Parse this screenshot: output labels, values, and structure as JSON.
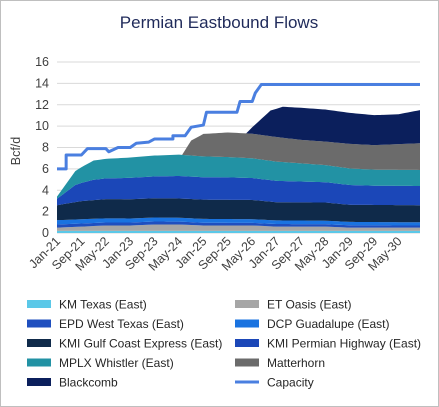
{
  "chart_data": {
    "type": "area",
    "title": "Permian Eastbound Flows",
    "ylabel": "Bcf/d",
    "xlabel": "",
    "ylim": [
      0,
      16
    ],
    "yticks": [
      0,
      2,
      4,
      6,
      8,
      10,
      12,
      14,
      16
    ],
    "grid": true,
    "legend_position": "bottom",
    "x_tick_labels": [
      "Jan-21",
      "Sep-21",
      "May-22",
      "Jan-23",
      "Sep-23",
      "May-24",
      "Jan-25",
      "Sep-25",
      "May-26",
      "Jan-27",
      "Sep-27",
      "May-28",
      "Jan-29",
      "Sep-29",
      "May-30"
    ],
    "x_tick_positions": [
      0,
      8,
      16,
      24,
      32,
      40,
      48,
      56,
      64,
      72,
      80,
      88,
      96,
      104,
      112
    ],
    "x_count": 120,
    "series": [
      {
        "name": "KM Texas (East)",
        "color": "#5bc8e8",
        "points": [
          [
            0,
            0.2
          ],
          [
            119,
            0.2
          ]
        ]
      },
      {
        "name": "ET Oasis (East)",
        "color": "#a6a6a6",
        "points": [
          [
            0,
            0.3
          ],
          [
            8,
            0.4
          ],
          [
            16,
            0.5
          ],
          [
            24,
            0.5
          ],
          [
            32,
            0.6
          ],
          [
            40,
            0.6
          ],
          [
            48,
            0.5
          ],
          [
            56,
            0.5
          ],
          [
            64,
            0.5
          ],
          [
            72,
            0.4
          ],
          [
            80,
            0.4
          ],
          [
            88,
            0.4
          ],
          [
            96,
            0.3
          ],
          [
            104,
            0.3
          ],
          [
            112,
            0.3
          ],
          [
            119,
            0.3
          ]
        ]
      },
      {
        "name": "EPD West Texas (East)",
        "color": "#1f4fbf",
        "points": [
          [
            0,
            0.3
          ],
          [
            119,
            0.2
          ]
        ]
      },
      {
        "name": "DCP Guadalupe (East)",
        "color": "#1a73e0",
        "points": [
          [
            0,
            0.4
          ],
          [
            119,
            0.3
          ]
        ]
      },
      {
        "name": "KMI Gulf Coast Express (East)",
        "color": "#0f2a4a",
        "points": [
          [
            0,
            1.4
          ],
          [
            8,
            1.7
          ],
          [
            16,
            1.8
          ],
          [
            24,
            1.8
          ],
          [
            32,
            1.8
          ],
          [
            40,
            1.8
          ],
          [
            48,
            1.8
          ],
          [
            56,
            1.8
          ],
          [
            64,
            1.8
          ],
          [
            72,
            1.7
          ],
          [
            80,
            1.7
          ],
          [
            88,
            1.7
          ],
          [
            96,
            1.6
          ],
          [
            104,
            1.6
          ],
          [
            112,
            1.6
          ],
          [
            119,
            1.6
          ]
        ]
      },
      {
        "name": "KMI Permian Highway (East)",
        "color": "#1b47b8",
        "points": [
          [
            0,
            0.6
          ],
          [
            6,
            1.6
          ],
          [
            12,
            1.9
          ],
          [
            24,
            2.0
          ],
          [
            40,
            2.1
          ],
          [
            56,
            2.1
          ],
          [
            72,
            2.0
          ],
          [
            88,
            1.9
          ],
          [
            104,
            1.8
          ],
          [
            119,
            1.8
          ]
        ]
      },
      {
        "name": "MPLX Whistler (East)",
        "color": "#2292a4",
        "points": [
          [
            0,
            0.2
          ],
          [
            6,
            1.3
          ],
          [
            12,
            1.8
          ],
          [
            24,
            1.9
          ],
          [
            40,
            2.0
          ],
          [
            56,
            1.9
          ],
          [
            72,
            1.8
          ],
          [
            88,
            1.6
          ],
          [
            104,
            1.5
          ],
          [
            119,
            1.5
          ]
        ]
      },
      {
        "name": "Matterhorn",
        "color": "#6b6b6b",
        "points": [
          [
            0,
            0
          ],
          [
            41,
            0
          ],
          [
            44,
            1.4
          ],
          [
            48,
            2.1
          ],
          [
            56,
            2.3
          ],
          [
            64,
            2.3
          ],
          [
            72,
            2.3
          ],
          [
            80,
            2.2
          ],
          [
            88,
            2.2
          ],
          [
            96,
            2.3
          ],
          [
            104,
            2.3
          ],
          [
            112,
            2.4
          ],
          [
            119,
            2.5
          ]
        ]
      },
      {
        "name": "Blackcomb",
        "color": "#0b1f5c",
        "points": [
          [
            0,
            0
          ],
          [
            62,
            0
          ],
          [
            66,
            1.2
          ],
          [
            70,
            2.4
          ],
          [
            74,
            2.9
          ],
          [
            80,
            3.0
          ],
          [
            88,
            3.0
          ],
          [
            96,
            2.9
          ],
          [
            104,
            2.8
          ],
          [
            112,
            2.8
          ],
          [
            119,
            3.1
          ]
        ]
      }
    ],
    "capacity": {
      "name": "Capacity",
      "color": "#4a7fe0",
      "points": [
        [
          0,
          6.0
        ],
        [
          3,
          6.0
        ],
        [
          3,
          7.3
        ],
        [
          8,
          7.3
        ],
        [
          10,
          7.9
        ],
        [
          16,
          7.9
        ],
        [
          17,
          7.6
        ],
        [
          20,
          8.0
        ],
        [
          24,
          8.0
        ],
        [
          26,
          8.4
        ],
        [
          30,
          8.5
        ],
        [
          32,
          8.8
        ],
        [
          38,
          8.8
        ],
        [
          38,
          9.1
        ],
        [
          42,
          9.1
        ],
        [
          44,
          9.9
        ],
        [
          48,
          10.1
        ],
        [
          49,
          11.3
        ],
        [
          59,
          11.3
        ],
        [
          60,
          12.3
        ],
        [
          64,
          12.3
        ],
        [
          65,
          13.1
        ],
        [
          67,
          13.9
        ],
        [
          119,
          13.9
        ]
      ]
    },
    "legend": [
      {
        "label": "KM Texas (East)",
        "color": "#5bc8e8",
        "kind": "area"
      },
      {
        "label": "ET Oasis (East)",
        "color": "#a6a6a6",
        "kind": "area"
      },
      {
        "label": "EPD West Texas (East)",
        "color": "#1f4fbf",
        "kind": "area"
      },
      {
        "label": "DCP Guadalupe (East)",
        "color": "#1a73e0",
        "kind": "area"
      },
      {
        "label": "KMI Gulf Coast Express (East)",
        "color": "#0f2a4a",
        "kind": "area"
      },
      {
        "label": "KMI Permian Highway (East)",
        "color": "#1b47b8",
        "kind": "area"
      },
      {
        "label": "MPLX Whistler (East)",
        "color": "#2292a4",
        "kind": "area"
      },
      {
        "label": "Matterhorn",
        "color": "#6b6b6b",
        "kind": "area"
      },
      {
        "label": "Blackcomb",
        "color": "#0b1f5c",
        "kind": "area"
      },
      {
        "label": "Capacity",
        "color": "#4a7fe0",
        "kind": "line"
      }
    ]
  }
}
